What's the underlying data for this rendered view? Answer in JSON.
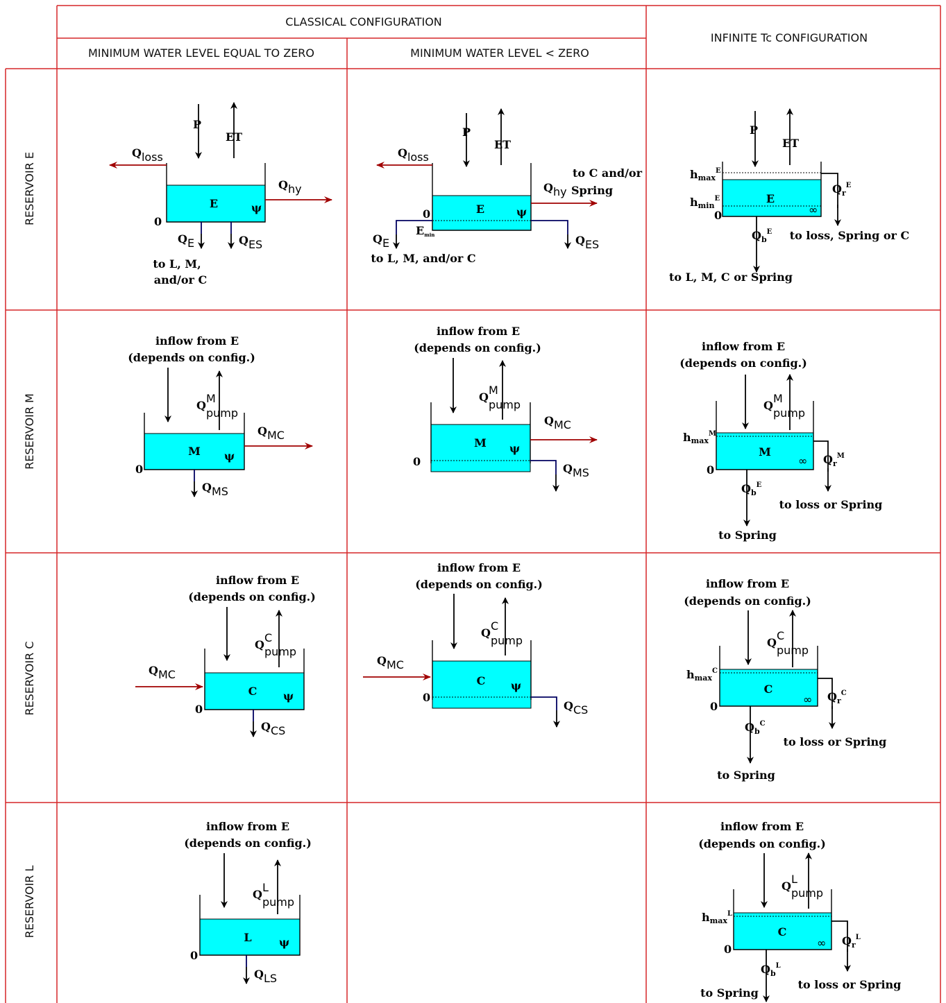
{
  "headers": {
    "classical": "CLASSICAL CONFIGURATION",
    "infinite": "INFINITE Tc CONFIGURATION",
    "col_zero": "MINIMUM WATER LEVEL EQUAL TO ZERO",
    "col_below": "MINIMUM WATER LEVEL < ZERO"
  },
  "rows": {
    "e": "RESERVOIR E",
    "m": "RESERVOIR M",
    "c": "RESERVOIR C",
    "l": "RESERVOIR L"
  },
  "common": {
    "zero": "0",
    "inflow": "inflow from E",
    "depends": "(depends on config.)",
    "Q": "Q",
    "pump": "pump",
    "to_spring": "to Spring",
    "loss_or_spring": "to loss or Spring",
    "infinity": "∞",
    "h": "h",
    "max": "max",
    "min": "min",
    "r": "r",
    "b": "b"
  },
  "res_e": {
    "tank": "E",
    "P": "P",
    "ET": "ET",
    "loss": "loss",
    "hy": "hy",
    "E_sub": "E",
    "ES": "ES",
    "to_lm": "to L, M,",
    "and_c": "and/or C",
    "to_c_and_or": "to C and/or",
    "spring": "Spring",
    "emin": "E",
    "emin_sub": "min",
    "to_lmc": "to L, M, and/or C",
    "sup": "E",
    "to_loss_spring_c": "to loss, Spring or C",
    "to_lmc_spring": "to L, M, C or Spring"
  },
  "res_m": {
    "tank": "M",
    "sup": "M",
    "MC": "MC",
    "MS": "MS",
    "b_sup": "E"
  },
  "res_c": {
    "tank": "C",
    "sup": "C",
    "MC": "MC",
    "CS": "CS"
  },
  "res_l": {
    "tank": "L",
    "sup": "L",
    "LS": "LS",
    "tank_inf": "C"
  }
}
